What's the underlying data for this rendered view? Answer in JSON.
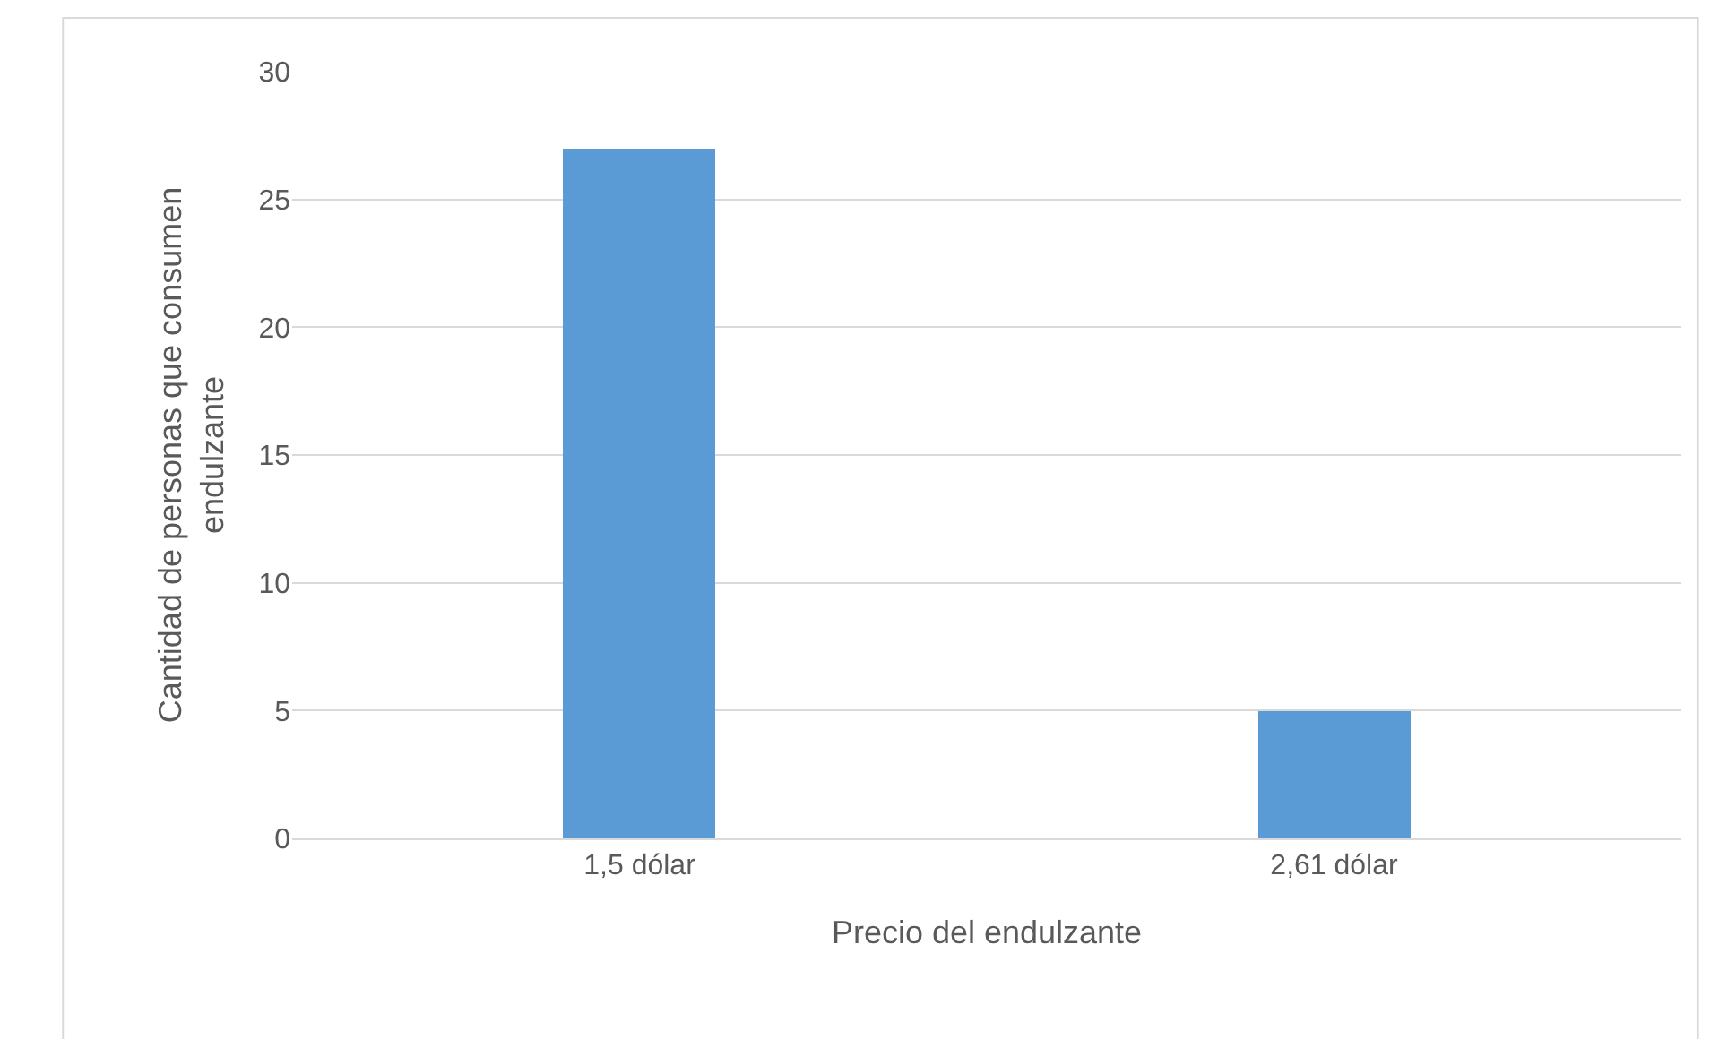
{
  "chart_data": {
    "type": "bar",
    "categories": [
      "1,5 dólar",
      "2,61 dólar"
    ],
    "values": [
      27,
      5
    ],
    "color": "#5b9bd5",
    "xlabel": "Precio del endulzante",
    "ylabel": "Cantidad de personas que consumen endulzante",
    "ylim": [
      0,
      30
    ],
    "yticks": [
      0,
      5,
      10,
      15,
      20,
      25,
      30
    ],
    "grid": "y",
    "legend": false
  }
}
